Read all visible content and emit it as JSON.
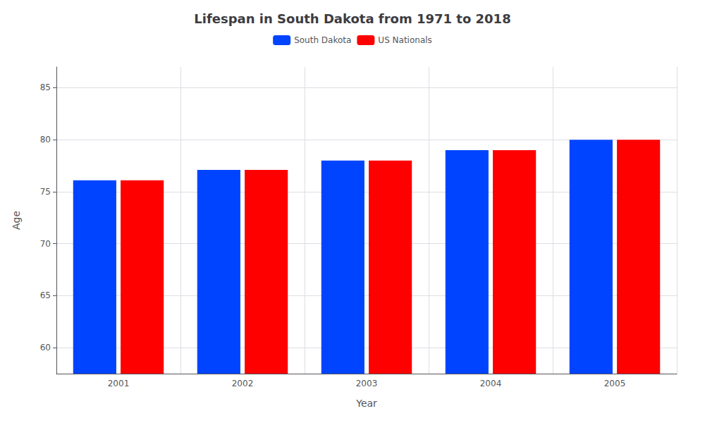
{
  "chart_data": {
    "type": "bar",
    "title": "Lifespan in South Dakota from 1971 to 2018",
    "x_label": "Year",
    "y_label": "Age",
    "categories": [
      "2001",
      "2002",
      "2003",
      "2004",
      "2005"
    ],
    "series": [
      {
        "name": "South Dakota",
        "color": "#0044ff",
        "values": [
          76.1,
          77.1,
          78.0,
          79.0,
          80.0
        ]
      },
      {
        "name": "US Nationals",
        "color": "#ff0000",
        "values": [
          76.1,
          77.1,
          78.0,
          79.0,
          80.0
        ]
      }
    ],
    "ylim": [
      57.5,
      87
    ],
    "yticks": [
      60,
      65,
      70,
      75,
      80,
      85
    ],
    "grid": true,
    "legend": "top"
  }
}
